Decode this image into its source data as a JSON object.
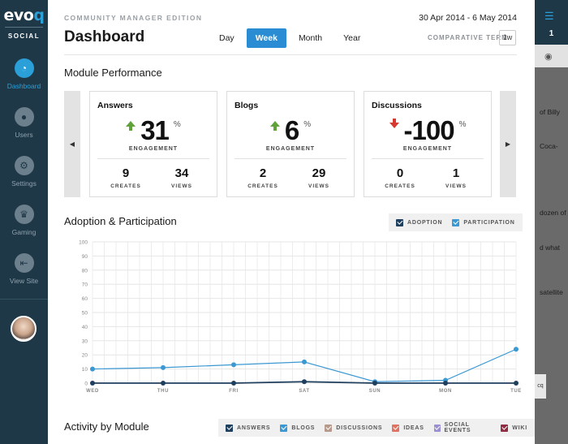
{
  "sidebar": {
    "logo_main": "evo",
    "logo_accent": "q",
    "logo_sub": "SOCIAL",
    "items": [
      {
        "label": "Dashboard",
        "icon": "gauge-icon",
        "glyph": "◔"
      },
      {
        "label": "Users",
        "icon": "users-icon",
        "glyph": "●"
      },
      {
        "label": "Settings",
        "icon": "gear-icon",
        "glyph": "⚙"
      },
      {
        "label": "Gaming",
        "icon": "trophy-icon",
        "glyph": "♛"
      },
      {
        "label": "View Site",
        "icon": "exit-icon",
        "glyph": "⇤"
      }
    ]
  },
  "header": {
    "edition": "COMMUNITY MANAGER EDITION",
    "date_range": "30 Apr 2014 - 6 May 2014",
    "title": "Dashboard",
    "tabs": [
      "Day",
      "Week",
      "Month",
      "Year"
    ],
    "active_tab": "Week",
    "comparative_label": "COMPARATIVE TERM",
    "comparative_value": "1w"
  },
  "module_performance": {
    "title": "Module Performance",
    "prev_glyph": "◀",
    "next_glyph": "▶",
    "cards": [
      {
        "title": "Answers",
        "value": "31",
        "pct": "%",
        "trend": "up",
        "metric": "ENGAGEMENT",
        "creates": "9",
        "views": "34",
        "creates_label": "CREATES",
        "views_label": "VIEWS"
      },
      {
        "title": "Blogs",
        "value": "6",
        "pct": "%",
        "trend": "up",
        "metric": "ENGAGEMENT",
        "creates": "2",
        "views": "29",
        "creates_label": "CREATES",
        "views_label": "VIEWS"
      },
      {
        "title": "Discussions",
        "value": "-100",
        "pct": "%",
        "trend": "down",
        "metric": "ENGAGEMENT",
        "creates": "0",
        "views": "1",
        "creates_label": "CREATES",
        "views_label": "VIEWS"
      }
    ]
  },
  "adoption": {
    "title": "Adoption & Participation",
    "legend": [
      {
        "label": "ADOPTION",
        "color": "#1f3f5e"
      },
      {
        "label": "PARTICIPATION",
        "color": "#3b98d3"
      }
    ]
  },
  "activity": {
    "title": "Activity by Module",
    "legend": [
      {
        "label": "ANSWERS",
        "color": "#1f3f5e"
      },
      {
        "label": "BLOGS",
        "color": "#3b98d3"
      },
      {
        "label": "DISCUSSIONS",
        "color": "#b7998c"
      },
      {
        "label": "IDEAS",
        "color": "#e07262"
      },
      {
        "label": "SOCIAL EVENTS",
        "color": "#9a8fd0"
      },
      {
        "label": "WIKI",
        "color": "#8f2d42"
      }
    ]
  },
  "chart_data": {
    "type": "line",
    "title": "Adoption & Participation",
    "categories": [
      "WED",
      "THU",
      "FRI",
      "SAT",
      "SUN",
      "MON",
      "TUE"
    ],
    "ylim": [
      0,
      100
    ],
    "yticks": [
      0,
      10,
      20,
      30,
      40,
      50,
      60,
      70,
      80,
      90,
      100
    ],
    "grid": true,
    "legend_position": "top-right",
    "series": [
      {
        "name": "ADOPTION",
        "color": "#1f3f5e",
        "values": [
          0,
          0,
          0,
          1,
          0,
          0,
          0
        ]
      },
      {
        "name": "PARTICIPATION",
        "color": "#3b98d3",
        "values": [
          10,
          11,
          13,
          15,
          1,
          2,
          24
        ]
      }
    ]
  },
  "right_panel": {
    "count": "1",
    "list_glyph": "☰",
    "eye_glyph": "◉",
    "snippets": [
      "of Billy",
      "Coca-",
      "dozen of",
      "d what",
      "satellite"
    ],
    "mini": "cq"
  }
}
